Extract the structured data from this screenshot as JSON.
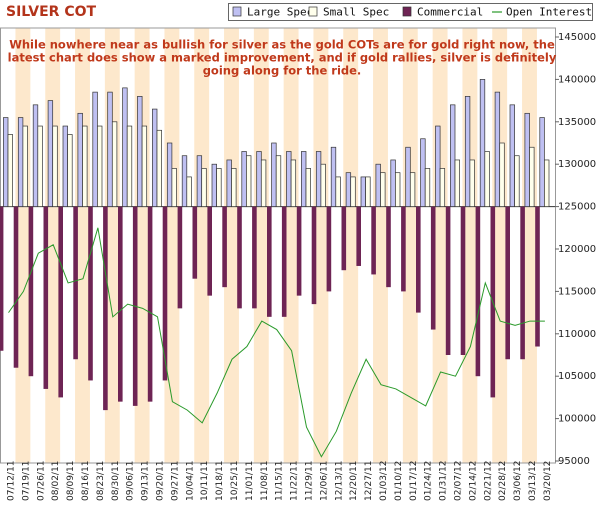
{
  "chart_data": {
    "type": "bar_line",
    "title": "SILVER COT",
    "annotation": [
      "While nowhere near as bullish for silver as the gold COTs are for gold right now, the",
      "latest chart does show a marked improvement, and if gold rallies, silver is definitely",
      "going along for the ride."
    ],
    "categories": [
      "07/12/11",
      "07/19/11",
      "07/26/11",
      "08/02/11",
      "08/09/11",
      "08/16/11",
      "08/23/11",
      "08/30/11",
      "09/06/11",
      "09/13/11",
      "09/20/11",
      "09/27/11",
      "10/04/11",
      "10/11/11",
      "10/18/11",
      "10/25/11",
      "11/01/11",
      "11/08/11",
      "11/15/11",
      "11/22/11",
      "11/29/11",
      "12/06/11",
      "12/13/11",
      "12/20/11",
      "12/27/11",
      "01/03/12",
      "01/10/12",
      "01/17/12",
      "01/24/12",
      "01/31/12",
      "02/07/12",
      "02/14/12",
      "02/21/12",
      "02/28/12",
      "03/06/12",
      "03/13/12",
      "03/20/12"
    ],
    "baseline": 125000,
    "series": [
      {
        "name": "Large Spec",
        "kind": "bar",
        "color": "#bfc0f2",
        "values": [
          135500,
          135500,
          137000,
          137500,
          134500,
          136000,
          138500,
          138500,
          139000,
          138000,
          136500,
          132500,
          131000,
          131000,
          130000,
          130500,
          131500,
          131500,
          132500,
          131500,
          131500,
          131500,
          132000,
          129000,
          128500,
          130000,
          130500,
          132000,
          133000,
          134500,
          137000,
          138000,
          140000,
          138500,
          137000,
          136000,
          135500
        ]
      },
      {
        "name": "Small Spec",
        "kind": "bar",
        "color": "#ffffec",
        "values": [
          133500,
          134500,
          134500,
          134500,
          133500,
          134500,
          134500,
          135000,
          134500,
          134500,
          134000,
          129500,
          128500,
          129500,
          129500,
          129500,
          131000,
          130500,
          131000,
          130500,
          129500,
          130000,
          128500,
          128500,
          128500,
          129000,
          129000,
          129000,
          129500,
          129500,
          130500,
          130500,
          131500,
          132500,
          131000,
          132000,
          130500
        ]
      },
      {
        "name": "Commercial",
        "kind": "bar",
        "color": "#6e2454",
        "values": [
          108000,
          106000,
          105000,
          103500,
          102500,
          107000,
          104500,
          101000,
          102000,
          101500,
          102000,
          104500,
          113000,
          116500,
          114500,
          115500,
          113000,
          113000,
          112000,
          112000,
          114500,
          113500,
          115000,
          117500,
          118000,
          117000,
          115500,
          115000,
          112500,
          110500,
          107500,
          107500,
          105000,
          102500,
          107000,
          107000,
          108500
        ]
      },
      {
        "name": "Open Interest",
        "kind": "line",
        "color": "#2a9a2a",
        "values": [
          112500,
          115000,
          119500,
          120500,
          116000,
          116500,
          122500,
          112000,
          113500,
          113000,
          112000,
          102000,
          101000,
          99500,
          103000,
          107000,
          108500,
          111500,
          110500,
          108000,
          99000,
          95500,
          98500,
          103000,
          107000,
          104000,
          103500,
          102500,
          101500,
          105500,
          105000,
          108500,
          116000,
          111500,
          111000,
          111500,
          111500
        ]
      }
    ],
    "ylim": [
      95000,
      145000
    ],
    "yticks": [
      95000,
      100000,
      105000,
      110000,
      115000,
      120000,
      125000,
      130000,
      135000,
      140000,
      145000
    ],
    "stripe_color": "#fde8cc"
  }
}
